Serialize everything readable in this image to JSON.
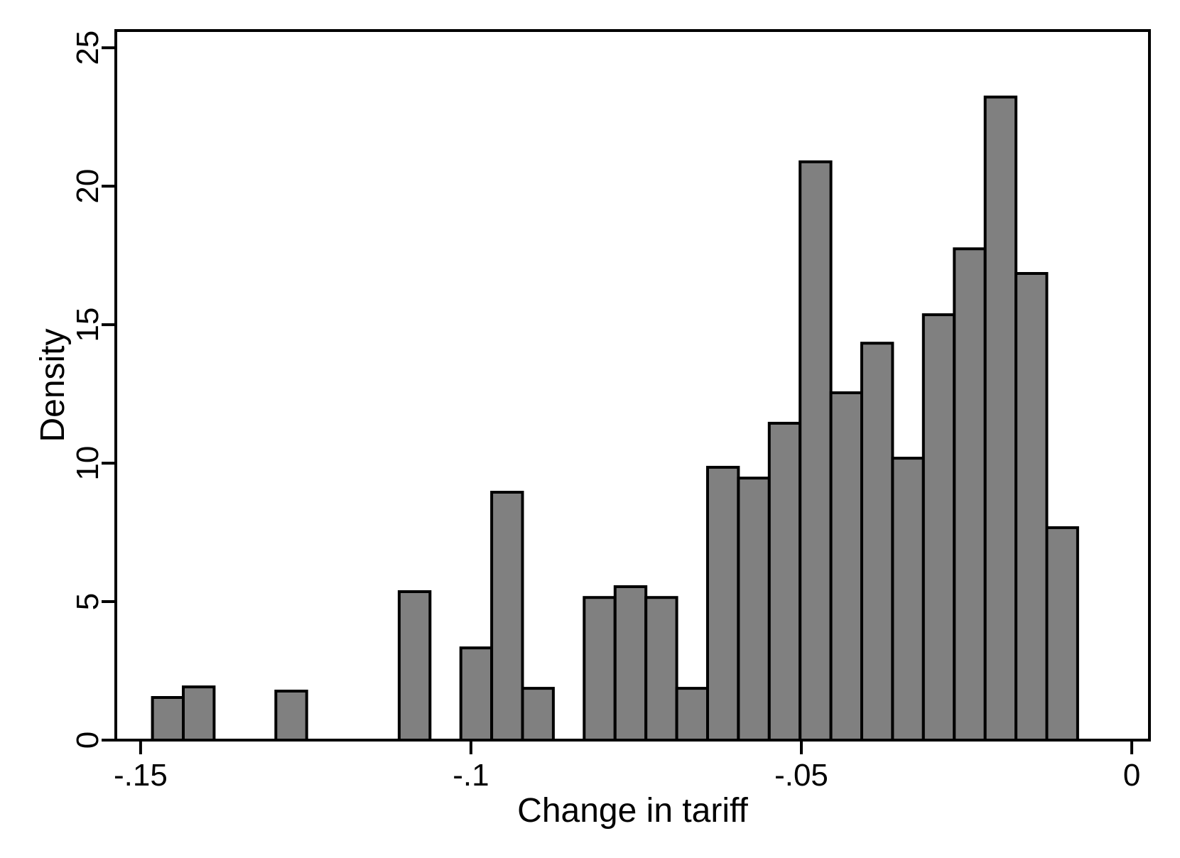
{
  "chart_data": {
    "type": "bar",
    "subtype": "histogram",
    "title": "",
    "xlabel": "Change in tariff",
    "ylabel": "Density",
    "xlim": [
      -0.15375,
      0.00268
    ],
    "ylim": [
      0,
      25.62
    ],
    "grid": false,
    "legend": null,
    "bin_start": -0.1482,
    "bin_width": 0.004667,
    "bin_heights": [
      1.54,
      1.92,
      0,
      0,
      1.77,
      0,
      0,
      0,
      5.36,
      0,
      3.33,
      8.95,
      1.87,
      0,
      5.15,
      5.54,
      5.15,
      1.87,
      9.85,
      9.46,
      11.44,
      20.88,
      12.54,
      14.33,
      10.18,
      15.36,
      17.74,
      23.22,
      16.85,
      7.67
    ],
    "x_ticks": [
      {
        "value": -0.15,
        "label": "-.15"
      },
      {
        "value": -0.1,
        "label": "-.1"
      },
      {
        "value": -0.05,
        "label": "-.05"
      },
      {
        "value": 0,
        "label": "0"
      }
    ],
    "y_ticks": [
      {
        "value": 0,
        "label": "0"
      },
      {
        "value": 5,
        "label": "5"
      },
      {
        "value": 10,
        "label": "10"
      },
      {
        "value": 15,
        "label": "15"
      },
      {
        "value": 20,
        "label": "20"
      },
      {
        "value": 25,
        "label": "25"
      }
    ],
    "colors": {
      "bar_fill": "#808080",
      "bar_stroke": "#000000",
      "axis": "#000000",
      "background": "#ffffff"
    }
  }
}
